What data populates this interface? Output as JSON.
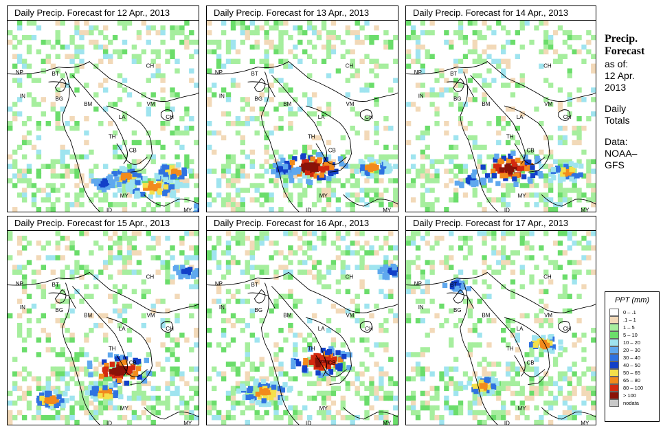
{
  "panels": [
    {
      "title": "Daily Precip. Forecast for  12 Apr., 2013",
      "storms": [
        [
          170,
          225,
          1
        ],
        [
          210,
          240,
          2
        ],
        [
          240,
          218,
          1
        ],
        [
          285,
          275,
          0.5
        ],
        [
          140,
          235,
          0.5
        ]
      ]
    },
    {
      "title": "Daily Precip. Forecast for  13 Apr., 2013",
      "storms": [
        [
          148,
          212,
          3
        ],
        [
          240,
          212,
          1
        ],
        [
          110,
          215,
          0.5
        ]
      ]
    },
    {
      "title": "Daily Precip. Forecast for  14 Apr., 2013",
      "storms": [
        [
          150,
          213,
          3
        ],
        [
          235,
          218,
          1
        ],
        [
          90,
          230,
          0.5
        ]
      ]
    },
    {
      "title": "Daily Precip. Forecast for  15 Apr., 2013",
      "storms": [
        [
          160,
          198,
          3
        ],
        [
          140,
          230,
          1
        ],
        [
          60,
          240,
          1
        ],
        [
          260,
          55,
          0.5
        ]
      ]
    },
    {
      "title": "Daily Precip. Forecast for  16 Apr., 2013",
      "storms": [
        [
          165,
          185,
          2.5
        ],
        [
          80,
          230,
          2
        ],
        [
          270,
          55,
          0.5
        ]
      ]
    },
    {
      "title": "Daily Precip. Forecast for  17 Apr., 2013",
      "storms": [
        [
          200,
          160,
          1
        ],
        [
          110,
          220,
          1
        ],
        [
          70,
          75,
          0.5
        ]
      ]
    }
  ],
  "country_labels": [
    {
      "code": "NP"
    },
    {
      "code": "BT"
    },
    {
      "code": "IN"
    },
    {
      "code": "BG"
    },
    {
      "code": "BM"
    },
    {
      "code": "CH"
    },
    {
      "code": "VM"
    },
    {
      "code": "LA"
    },
    {
      "code": "TH"
    },
    {
      "code": "CB"
    },
    {
      "code": "CH"
    },
    {
      "code": "MY"
    },
    {
      "code": "ID"
    },
    {
      "code": "MY"
    },
    {
      "code": "ID"
    }
  ],
  "side_panel": {
    "title_line1": "Precip.",
    "title_line2": "Forecast",
    "as_of": "as of:",
    "date_line1": "12 Apr.",
    "date_line2": "2013",
    "totals_line1": "Daily",
    "totals_line2": "Totals",
    "data_line1": "Data:",
    "data_line2": "NOAA–",
    "data_line3": "GFS"
  },
  "legend": {
    "title": "PPT (mm)",
    "items": [
      {
        "label": "0 – .1",
        "color": "#ffffff"
      },
      {
        "label": ".1 – 1",
        "color": "#f2d9b8"
      },
      {
        "label": "1 – 5",
        "color": "#a6ee9e"
      },
      {
        "label": "5 – 10",
        "color": "#6bdd6b"
      },
      {
        "label": "10 – 20",
        "color": "#9fe4ef"
      },
      {
        "label": "20 – 30",
        "color": "#5fa8ee"
      },
      {
        "label": "30 – 40",
        "color": "#2f72e0"
      },
      {
        "label": "40 – 50",
        "color": "#1340c8"
      },
      {
        "label": "50 – 65",
        "color": "#f4e04a"
      },
      {
        "label": "65 – 80",
        "color": "#f28a1c"
      },
      {
        "label": "80 – 100",
        "color": "#d32a10"
      },
      {
        "label": "> 100",
        "color": "#8a1208"
      },
      {
        "label": "nodata",
        "color": "#c8c8c8"
      }
    ]
  }
}
